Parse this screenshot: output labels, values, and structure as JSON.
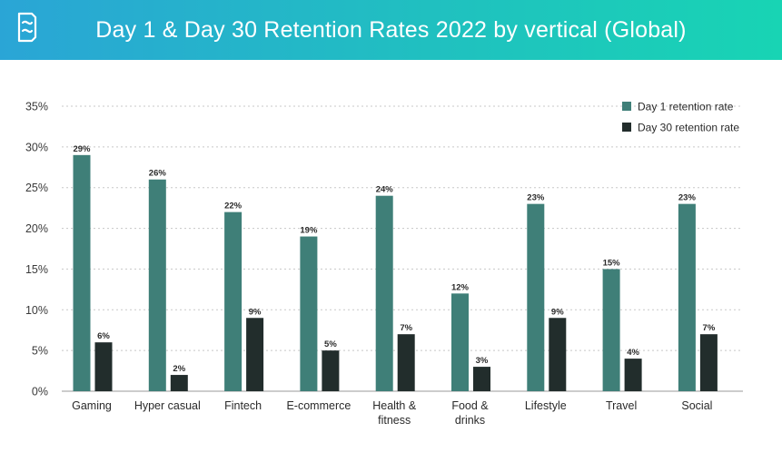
{
  "header": {
    "title": "Day 1 & Day 30 Retention Rates 2022 by vertical (Global)"
  },
  "colors": {
    "header_start": "#2aa5d6",
    "header_end": "#18d4b4",
    "day1": "#3f7f78",
    "day30": "#222d2c",
    "grid": "#c8c8c8",
    "axis": "#9a9a9a"
  },
  "chart_data": {
    "type": "bar",
    "title": "Day 1 & Day 30 Retention Rates 2022 by vertical (Global)",
    "xlabel": "",
    "ylabel": "",
    "ylim": [
      0,
      35
    ],
    "yticks": [
      "0%",
      "5%",
      "10%",
      "15%",
      "20%",
      "25%",
      "30%",
      "35%"
    ],
    "grid": true,
    "legend_position": "top-right",
    "categories": [
      [
        "Gaming"
      ],
      [
        "Hyper casual"
      ],
      [
        "Fintech"
      ],
      [
        "E-commerce"
      ],
      [
        "Health &",
        "fitness"
      ],
      [
        "Food &",
        "drinks"
      ],
      [
        "Lifestyle"
      ],
      [
        "Travel"
      ],
      [
        "Social"
      ]
    ],
    "series": [
      {
        "name": "Day 1 retention rate",
        "values": [
          29,
          26,
          22,
          19,
          24,
          12,
          23,
          15,
          23
        ],
        "labels": [
          "29%",
          "26%",
          "22%",
          "19%",
          "24%",
          "12%",
          "23%",
          "15%",
          "23%"
        ]
      },
      {
        "name": "Day 30 retention rate",
        "values": [
          6,
          2,
          9,
          5,
          7,
          3,
          9,
          4,
          7
        ],
        "labels": [
          "6%",
          "2%",
          "9%",
          "5%",
          "7%",
          "3%",
          "9%",
          "4%",
          "7%"
        ]
      }
    ]
  }
}
